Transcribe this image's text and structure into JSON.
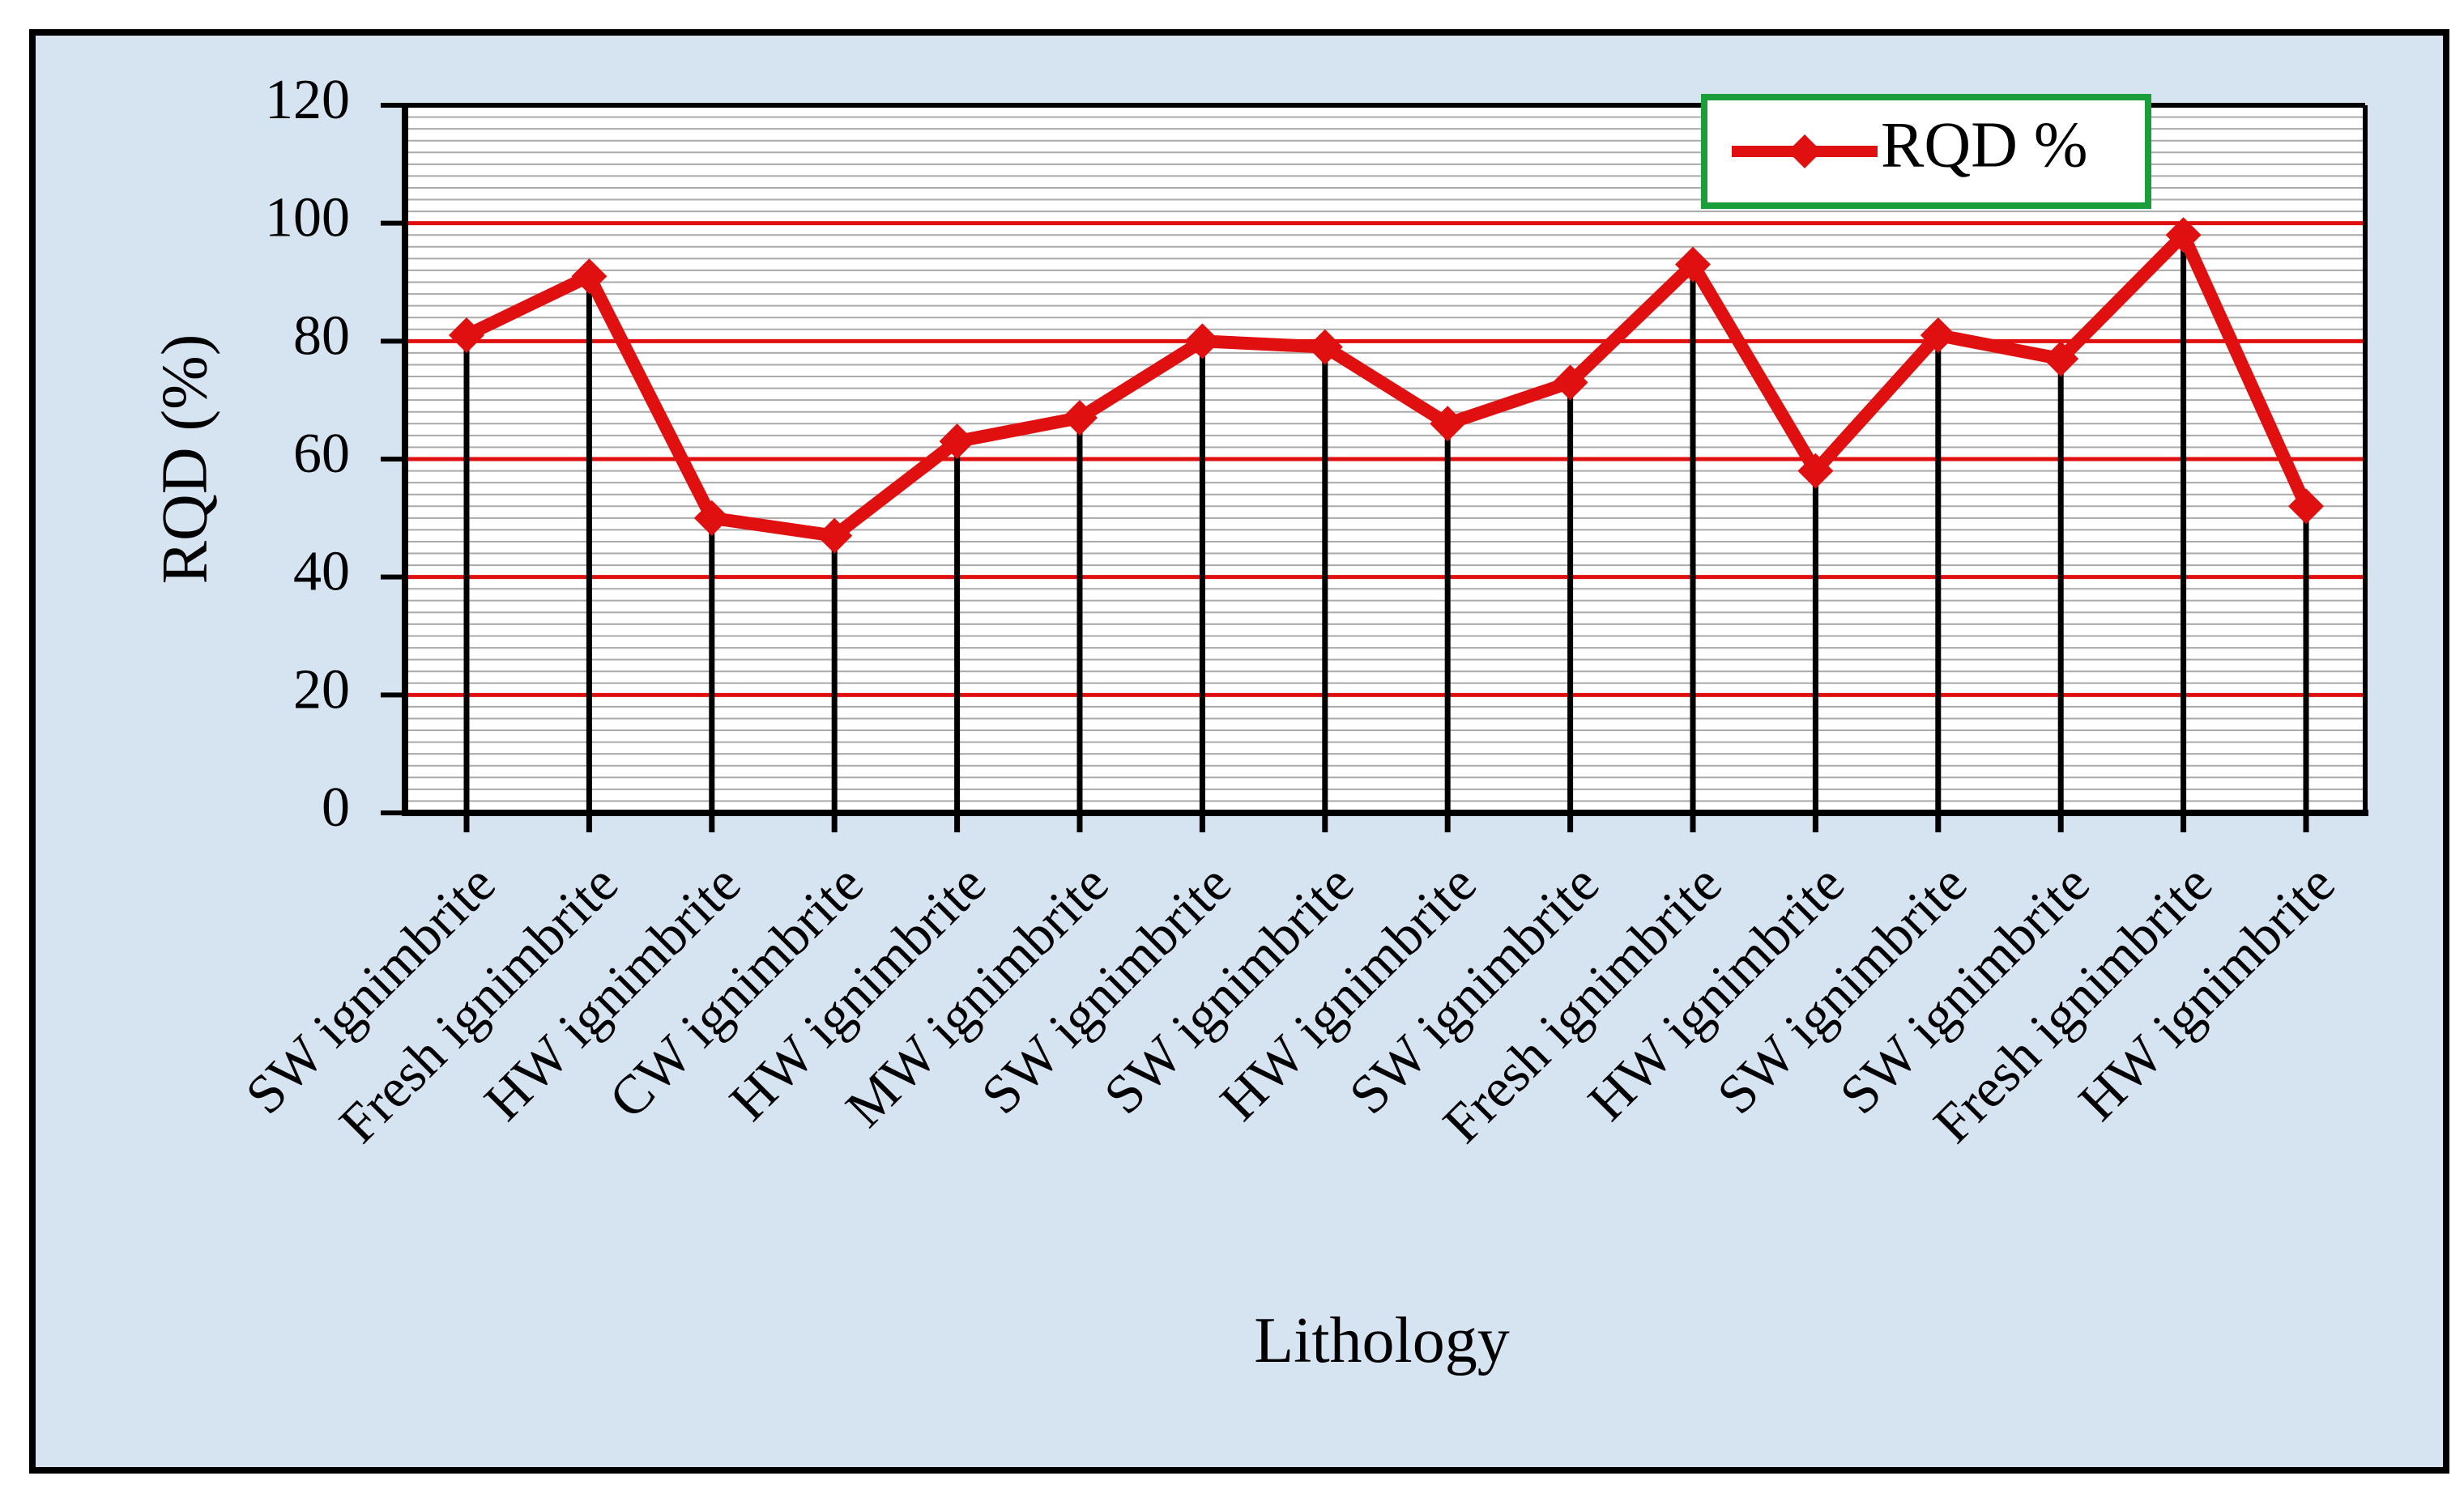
{
  "colors": {
    "background": "#d6e4f2",
    "frame": "#000000",
    "series": "#e01010",
    "major_grid": "#e01010",
    "minor_grid": "#aaaaaa",
    "legend_border": "#1a9e3a"
  },
  "chart_data": {
    "type": "line",
    "title": "",
    "xlabel": "Lithology",
    "ylabel": "RQD (%)",
    "ylim": [
      0,
      120
    ],
    "yticks": [
      "0",
      "20",
      "40",
      "60",
      "80",
      "100",
      "120"
    ],
    "grid": true,
    "legend_position": "top-right",
    "categories": [
      "SW ignimbrite",
      "Fresh ignimbrite",
      "HW ignimbrite",
      "CW ignimbrite",
      "HW ignimbrite",
      "MW ignimbrite",
      "SW ignimbrite",
      "SW ignimbrite",
      "HW ignimbrite",
      "SW ignimbrite",
      "Fresh ignimbrite",
      "HW ignimbrite",
      "SW ignimbrite",
      "SW ignimbrite",
      "Fresh ignimbrite",
      "HW ignimbrite"
    ],
    "series": [
      {
        "name": "RQD %",
        "marker": "diamond",
        "values": [
          81,
          91,
          50,
          47,
          63,
          67,
          80,
          79,
          66,
          73,
          93,
          58,
          81,
          77,
          98,
          52
        ]
      }
    ]
  }
}
